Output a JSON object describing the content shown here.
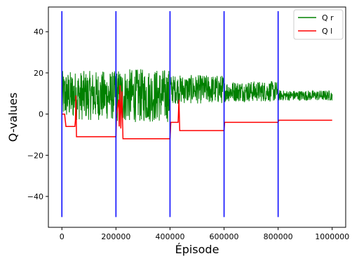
{
  "chart_data": {
    "type": "line",
    "xlabel": "Épisode",
    "ylabel": "Q-values",
    "xlim": [
      -50000,
      1050000
    ],
    "ylim": [
      -55,
      52
    ],
    "xticks": [
      {
        "value": 0,
        "label": "0"
      },
      {
        "value": 200000,
        "label": "200000"
      },
      {
        "value": 400000,
        "label": "400000"
      },
      {
        "value": 600000,
        "label": "600000"
      },
      {
        "value": 800000,
        "label": "800000"
      },
      {
        "value": 1000000,
        "label": "1000000"
      }
    ],
    "yticks": [
      {
        "value": 40,
        "label": "40"
      },
      {
        "value": 20,
        "label": "20"
      },
      {
        "value": 0,
        "label": "0"
      },
      {
        "value": -20,
        "label": "−20"
      },
      {
        "value": -40,
        "label": "−40"
      }
    ],
    "grid": false,
    "legend": {
      "placement": "top-right"
    },
    "series": [
      {
        "name": "Q r",
        "color": "#008000",
        "noisy": true,
        "segments": [
          {
            "x_start": 0,
            "x_end": 200000,
            "mean": 9,
            "spread": 12
          },
          {
            "x_start": 200000,
            "x_end": 400000,
            "mean": 9,
            "spread": 13
          },
          {
            "x_start": 400000,
            "x_end": 600000,
            "mean": 12,
            "spread": 7
          },
          {
            "x_start": 600000,
            "x_end": 800000,
            "mean": 11,
            "spread": 5
          },
          {
            "x_start": 800000,
            "x_end": 1000000,
            "mean": 9,
            "spread": 2.5
          }
        ]
      },
      {
        "name": "Q l",
        "color": "#ff0000",
        "points": [
          [
            0,
            0
          ],
          [
            10000,
            0
          ],
          [
            15000,
            -6
          ],
          [
            48000,
            -6
          ],
          [
            50000,
            -3
          ],
          [
            52000,
            9
          ],
          [
            54000,
            -11
          ],
          [
            200000,
            -11
          ],
          [
            202000,
            0
          ],
          [
            210000,
            7
          ],
          [
            212000,
            -6
          ],
          [
            215000,
            14
          ],
          [
            218000,
            -7
          ],
          [
            222000,
            11
          ],
          [
            226000,
            -12
          ],
          [
            400000,
            -12
          ],
          [
            403000,
            -4
          ],
          [
            430000,
            -4
          ],
          [
            433000,
            7
          ],
          [
            436000,
            -8
          ],
          [
            600000,
            -8
          ],
          [
            602000,
            -4
          ],
          [
            800000,
            -4
          ],
          [
            802000,
            -3
          ],
          [
            1000000,
            -3
          ]
        ]
      }
    ],
    "vertical_lines": {
      "color": "#0000ff",
      "x": [
        0,
        200000,
        400000,
        600000,
        800000
      ],
      "y_range": [
        -50,
        50
      ]
    }
  }
}
